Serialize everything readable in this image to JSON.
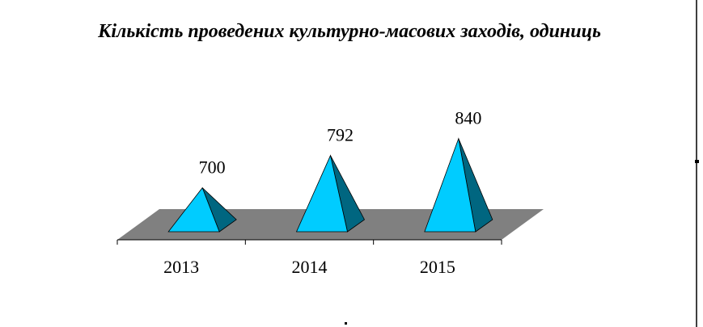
{
  "chart_data": {
    "type": "pyramid3d",
    "title": "Кількість проведених культурно-масових заходів, одиниць",
    "categories": [
      "2013",
      "2014",
      "2015"
    ],
    "values": [
      700,
      792,
      840
    ],
    "ylim": [
      575,
      1000
    ],
    "color": "#00ccff",
    "floor_color": "#808080"
  }
}
